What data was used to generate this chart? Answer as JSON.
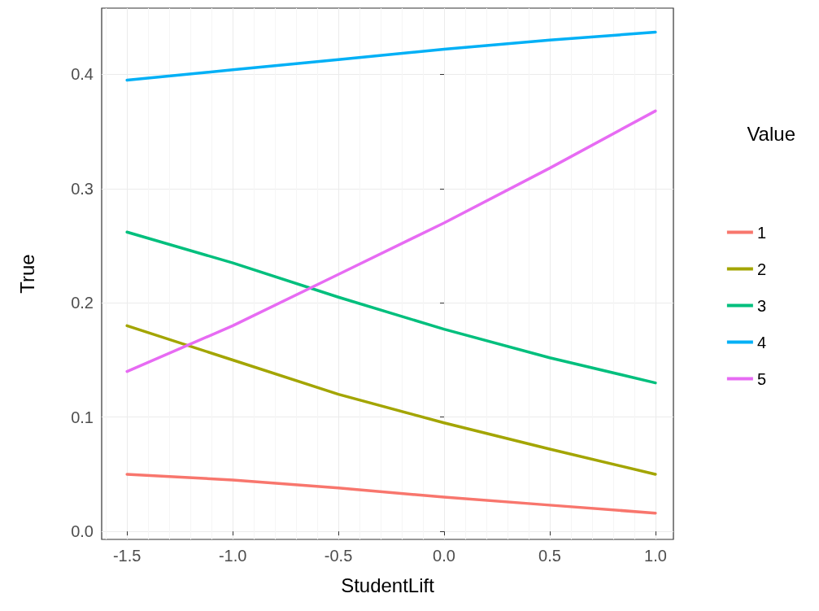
{
  "chart_data": {
    "type": "line",
    "xlabel": "StudentLift",
    "ylabel": "True",
    "legend_title": "Value",
    "x": [
      -1.5,
      -1.0,
      -0.5,
      0.0,
      0.5,
      1.0
    ],
    "series": [
      {
        "name": "1",
        "color": "#f8766d",
        "values": [
          0.05,
          0.045,
          0.038,
          0.03,
          0.023,
          0.016
        ]
      },
      {
        "name": "2",
        "color": "#a3a500",
        "values": [
          0.18,
          0.15,
          0.12,
          0.095,
          0.072,
          0.05
        ]
      },
      {
        "name": "3",
        "color": "#00bf7d",
        "values": [
          0.262,
          0.235,
          0.205,
          0.177,
          0.152,
          0.13
        ]
      },
      {
        "name": "4",
        "color": "#00b0f6",
        "values": [
          0.395,
          0.404,
          0.413,
          0.422,
          0.43,
          0.437
        ]
      },
      {
        "name": "5",
        "color": "#e76bf3",
        "values": [
          0.14,
          0.18,
          0.225,
          0.27,
          0.318,
          0.368
        ]
      }
    ],
    "xlim": [
      -1.62,
      1.085
    ],
    "ylim": [
      -0.007,
      0.458
    ],
    "xticks": [
      {
        "value": -1.5,
        "label": "-1.5"
      },
      {
        "value": -1.0,
        "label": "-1.0"
      },
      {
        "value": -0.5,
        "label": "-0.5"
      },
      {
        "value": 0.0,
        "label": "0.0"
      },
      {
        "value": 0.5,
        "label": "0.5"
      },
      {
        "value": 1.0,
        "label": "1.0"
      }
    ],
    "yticks": [
      {
        "value": 0.0,
        "label": "0.0"
      },
      {
        "value": 0.1,
        "label": "0.1"
      },
      {
        "value": 0.2,
        "label": "0.2"
      },
      {
        "value": 0.3,
        "label": "0.3"
      },
      {
        "value": 0.4,
        "label": "0.4"
      }
    ],
    "grid": true,
    "legend": "right",
    "marker": "none",
    "line_style": "solid"
  }
}
